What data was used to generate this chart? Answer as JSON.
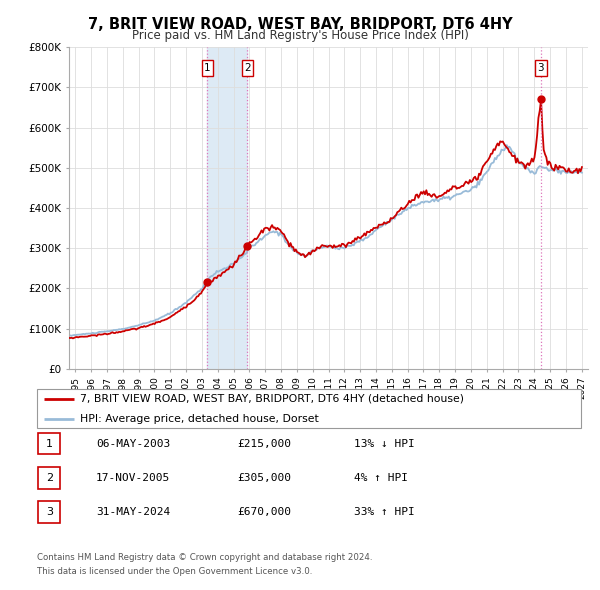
{
  "title": "7, BRIT VIEW ROAD, WEST BAY, BRIDPORT, DT6 4HY",
  "subtitle": "Price paid vs. HM Land Registry's House Price Index (HPI)",
  "ylim": [
    0,
    800000
  ],
  "yticks": [
    0,
    100000,
    200000,
    300000,
    400000,
    500000,
    600000,
    700000,
    800000
  ],
  "ytick_labels": [
    "£0",
    "£100K",
    "£200K",
    "£300K",
    "£400K",
    "£500K",
    "£600K",
    "£700K",
    "£800K"
  ],
  "xlim_start": 1994.6,
  "xlim_end": 2027.4,
  "xticks": [
    1995,
    1996,
    1997,
    1998,
    1999,
    2000,
    2001,
    2002,
    2003,
    2004,
    2005,
    2006,
    2007,
    2008,
    2009,
    2010,
    2011,
    2012,
    2013,
    2014,
    2015,
    2016,
    2017,
    2018,
    2019,
    2020,
    2021,
    2022,
    2023,
    2024,
    2025,
    2026,
    2027
  ],
  "sale_color": "#cc0000",
  "hpi_color": "#99bbd8",
  "sale1_x": 2003.35,
  "sale1_y": 215000,
  "sale2_x": 2005.88,
  "sale2_y": 305000,
  "sale3_x": 2024.41,
  "sale3_y": 670000,
  "shade_color": "#ddeaf5",
  "vline_color": "#dd77bb",
  "legend_house_label": "7, BRIT VIEW ROAD, WEST BAY, BRIDPORT, DT6 4HY (detached house)",
  "legend_hpi_label": "HPI: Average price, detached house, Dorset",
  "table_entries": [
    {
      "num": 1,
      "date": "06-MAY-2003",
      "price": "£215,000",
      "hpi": "13% ↓ HPI"
    },
    {
      "num": 2,
      "date": "17-NOV-2005",
      "price": "£305,000",
      "hpi": "4% ↑ HPI"
    },
    {
      "num": 3,
      "date": "31-MAY-2024",
      "price": "£670,000",
      "hpi": "33% ↑ HPI"
    }
  ],
  "footer1": "Contains HM Land Registry data © Crown copyright and database right 2024.",
  "footer2": "This data is licensed under the Open Government Licence v3.0.",
  "background_color": "#ffffff",
  "grid_color": "#dddddd"
}
